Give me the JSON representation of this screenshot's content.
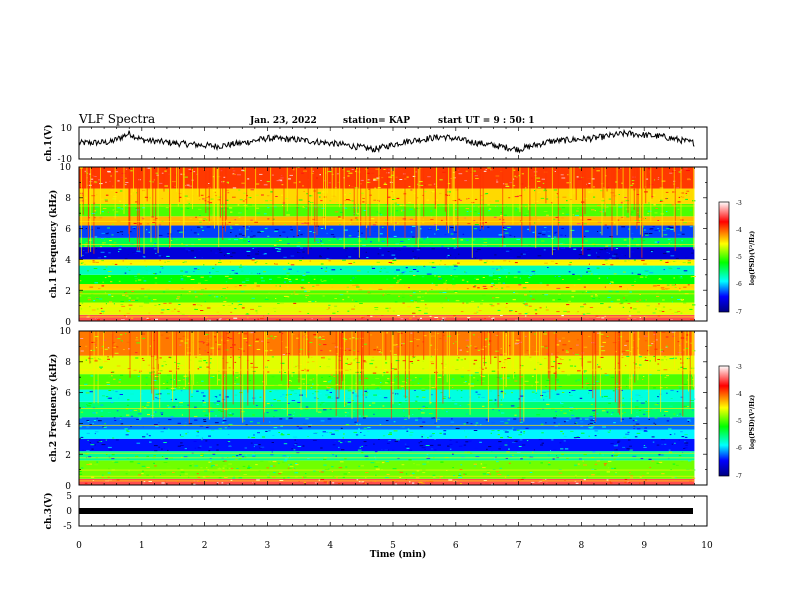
{
  "header": {
    "title": "VLF Spectra",
    "date": "Jan. 23, 2022",
    "station": "station= KAP",
    "start": "start  UT =  9 : 50: 1"
  },
  "colorbar": {
    "label": "log(PSD)(V²/Hz)",
    "ticks": [
      "-3",
      "-4",
      "-5",
      "-6",
      "-7"
    ],
    "colors": [
      "#ffffff",
      "#ff0000",
      "#ffff00",
      "#00ff00",
      "#00ffff",
      "#0000ff",
      "#000080"
    ]
  },
  "chart_data": [
    {
      "type": "line",
      "panel": "ch1_waveform",
      "ylabel": "ch.1(V)",
      "ylim": [
        -10,
        10
      ],
      "y_ticks": [
        "10",
        "-10"
      ],
      "x": [
        0,
        0.5,
        0.8,
        1.0,
        1.5,
        2.2,
        2.6,
        3.0,
        3.5,
        4.2,
        4.7,
        5.2,
        5.8,
        6.2,
        7.0,
        7.5,
        8.2,
        8.7,
        9.3,
        9.8
      ],
      "y": [
        0,
        0.5,
        6,
        2,
        0,
        -2,
        0,
        3,
        2,
        -1,
        -4,
        1,
        4,
        1,
        -4,
        1,
        3,
        6,
        4,
        0
      ]
    },
    {
      "type": "heatmap",
      "panel": "ch1_spectrogram",
      "ylabel": "ch.1 Frequency (kHz)",
      "ylim": [
        0,
        10
      ],
      "y_ticks": [
        "0",
        "2",
        "4",
        "6",
        "8",
        "10"
      ],
      "colorscale_range": [
        -7,
        -3
      ],
      "band_rows": [
        {
          "freq_kHz": [
            0,
            0.4
          ],
          "level": -3.5
        },
        {
          "freq_kHz": [
            0.4,
            1.2
          ],
          "level": -4.6
        },
        {
          "freq_kHz": [
            1.2,
            2.0
          ],
          "level": -5.0
        },
        {
          "freq_kHz": [
            2.0,
            2.4
          ],
          "level": -4.4
        },
        {
          "freq_kHz": [
            2.4,
            3.0
          ],
          "level": -5.2
        },
        {
          "freq_kHz": [
            3.0,
            3.6
          ],
          "level": -5.7
        },
        {
          "freq_kHz": [
            3.6,
            4.0
          ],
          "level": -4.5
        },
        {
          "freq_kHz": [
            4.0,
            4.8
          ],
          "level": -6.6
        },
        {
          "freq_kHz": [
            4.8,
            5.4
          ],
          "level": -5.4
        },
        {
          "freq_kHz": [
            5.4,
            6.2
          ],
          "level": -6.3
        },
        {
          "freq_kHz": [
            6.2,
            6.8
          ],
          "level": -4.3
        },
        {
          "freq_kHz": [
            6.8,
            7.6
          ],
          "level": -5.0
        },
        {
          "freq_kHz": [
            7.6,
            8.6
          ],
          "level": -4.4
        },
        {
          "freq_kHz": [
            8.6,
            10.0
          ],
          "level": -3.9
        }
      ]
    },
    {
      "type": "heatmap",
      "panel": "ch2_spectrogram",
      "ylabel": "ch.2 Frequency (kHz)",
      "ylim": [
        0,
        10
      ],
      "y_ticks": [
        "0",
        "2",
        "4",
        "6",
        "8",
        "10"
      ],
      "colorscale_range": [
        -7,
        -3
      ],
      "band_rows": [
        {
          "freq_kHz": [
            0,
            0.4
          ],
          "level": -3.5
        },
        {
          "freq_kHz": [
            0.4,
            1.6
          ],
          "level": -4.9
        },
        {
          "freq_kHz": [
            1.6,
            2.2
          ],
          "level": -5.6
        },
        {
          "freq_kHz": [
            2.2,
            3.0
          ],
          "level": -6.4
        },
        {
          "freq_kHz": [
            3.0,
            3.6
          ],
          "level": -5.9
        },
        {
          "freq_kHz": [
            3.6,
            4.4
          ],
          "level": -6.2
        },
        {
          "freq_kHz": [
            4.4,
            5.4
          ],
          "level": -5.5
        },
        {
          "freq_kHz": [
            5.4,
            6.2
          ],
          "level": -5.8
        },
        {
          "freq_kHz": [
            6.2,
            7.2
          ],
          "level": -5.0
        },
        {
          "freq_kHz": [
            7.2,
            8.4
          ],
          "level": -4.6
        },
        {
          "freq_kHz": [
            8.4,
            10.0
          ],
          "level": -4.1
        }
      ]
    },
    {
      "type": "line",
      "panel": "ch3_waveform",
      "ylabel": "ch.3(V)",
      "ylim": [
        -5,
        5
      ],
      "y_ticks": [
        "5",
        "0",
        "-5"
      ],
      "x": [
        0,
        9.8
      ],
      "y": [
        0,
        0
      ]
    }
  ],
  "x_axis": {
    "xlabel": "Time  (min)",
    "xlim": [
      0,
      10
    ],
    "ticks": [
      "0",
      "1",
      "2",
      "3",
      "4",
      "5",
      "6",
      "7",
      "8",
      "9",
      "10"
    ]
  }
}
